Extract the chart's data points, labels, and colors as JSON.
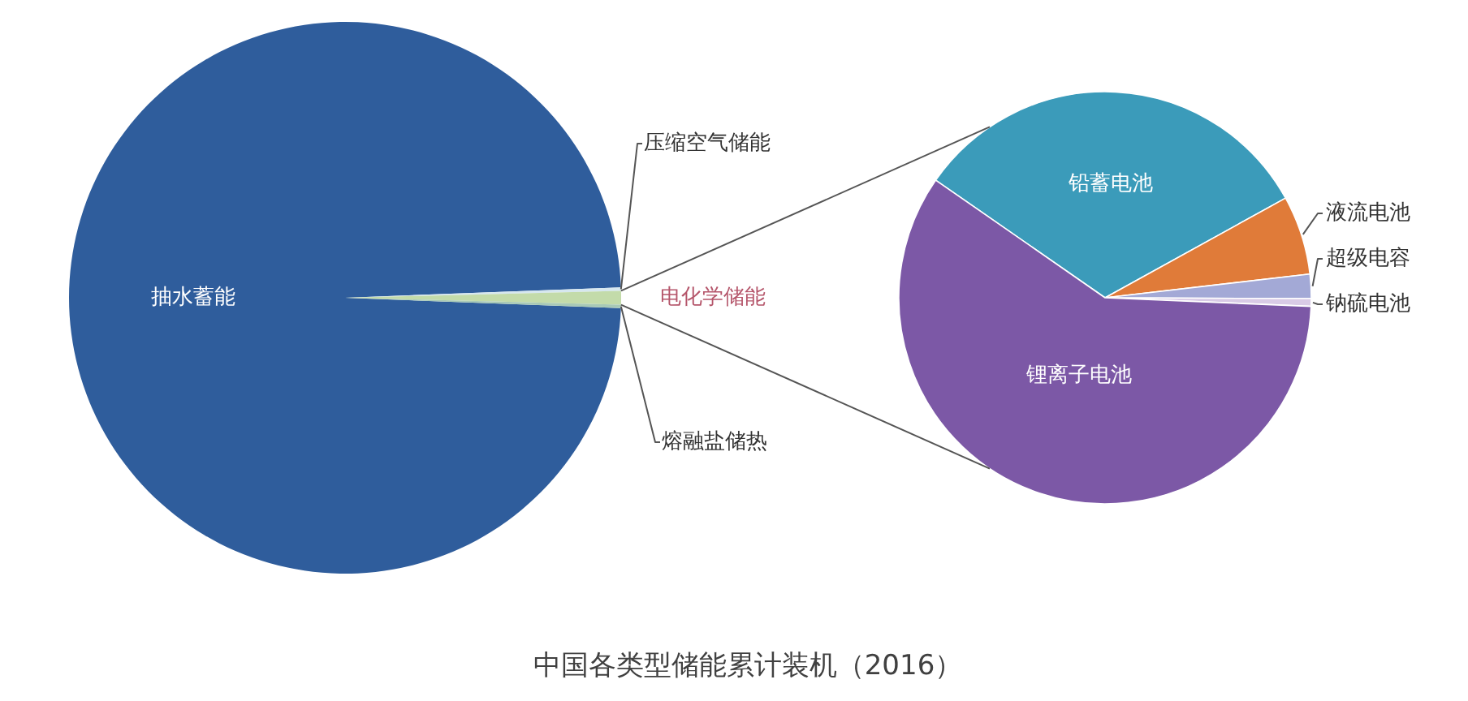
{
  "chart_data": [
    {
      "type": "pie",
      "title": "中国各类型储能累计装机（2016）",
      "categories": [
        "抽水蓄能",
        "压缩空气储能",
        "电化学储能",
        "熔融盐储热"
      ],
      "values": [
        98.8,
        0.2,
        0.8,
        0.2
      ],
      "colors": [
        "#2f5d9c",
        "#d6e7ef",
        "#c3dbaa",
        "#a8c9b6"
      ]
    },
    {
      "type": "pie",
      "categories": [
        "铅蓄电池",
        "液流电池",
        "超级电容",
        "钠硫电池",
        "锂离子电池"
      ],
      "values": [
        32.3,
        6.2,
        1.9,
        0.6,
        59.0
      ],
      "colors": [
        "#3b9bba",
        "#e07b39",
        "#a3a9d6",
        "#d9cbe6",
        "#7c58a6"
      ]
    }
  ]
}
